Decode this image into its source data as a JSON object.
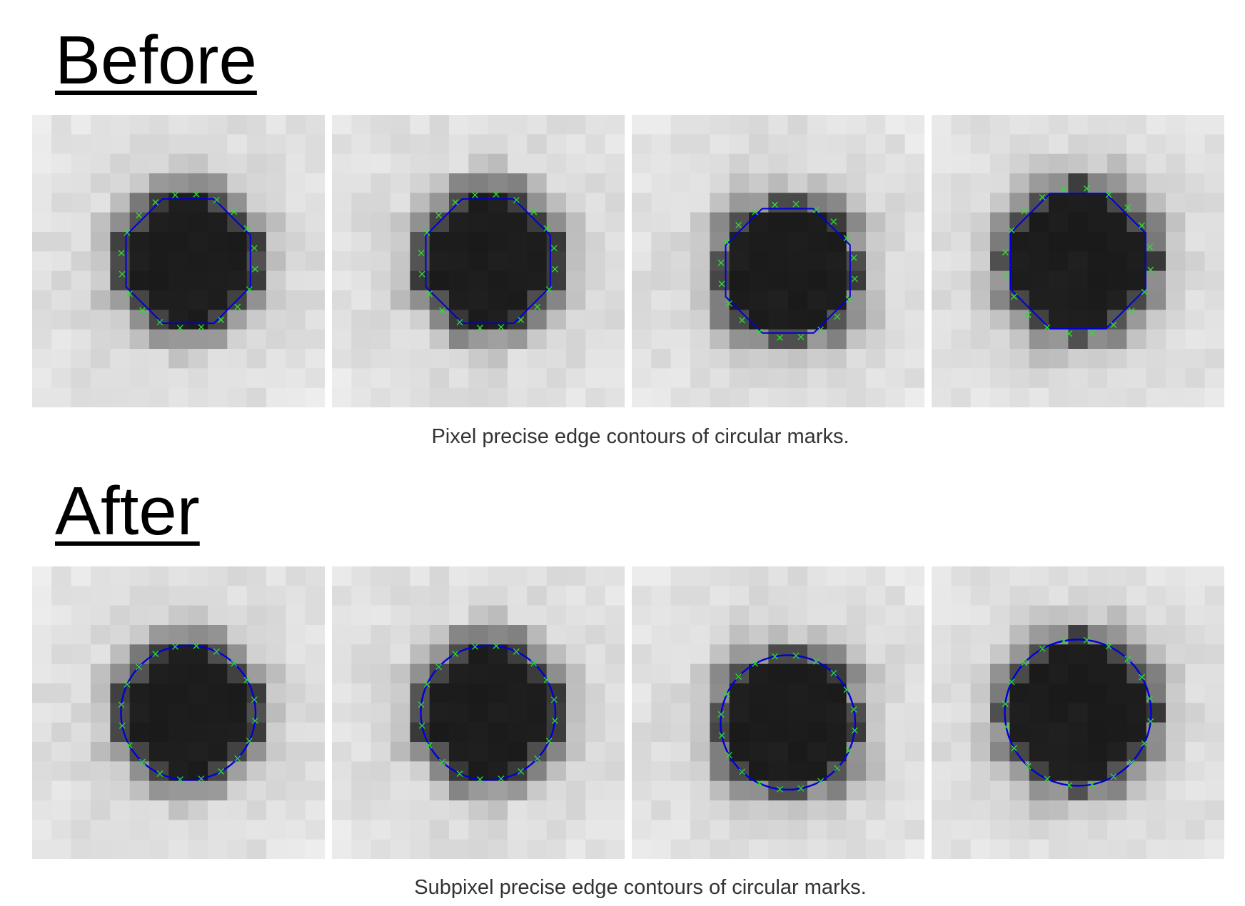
{
  "sections": [
    {
      "heading": "Before",
      "caption": "Pixel precise edge contours of circular marks.",
      "contour_style": "polygon",
      "panels": [
        {
          "blob_center": [
            8,
            7.5
          ],
          "blob_radius": 3.6
        },
        {
          "blob_center": [
            8,
            7.5
          ],
          "blob_radius": 3.6
        },
        {
          "blob_center": [
            8,
            8
          ],
          "blob_radius": 3.6
        },
        {
          "blob_center": [
            7.5,
            7.5
          ],
          "blob_radius": 3.9
        }
      ]
    },
    {
      "heading": "After",
      "caption": "Subpixel precise edge contours of circular marks.",
      "contour_style": "circle",
      "panels": [
        {
          "blob_center": [
            8,
            7.5
          ],
          "blob_radius": 3.6
        },
        {
          "blob_center": [
            8,
            7.5
          ],
          "blob_radius": 3.6
        },
        {
          "blob_center": [
            8,
            8
          ],
          "blob_radius": 3.6
        },
        {
          "blob_center": [
            7.5,
            7.5
          ],
          "blob_radius": 3.9
        }
      ]
    }
  ],
  "colors": {
    "contour": "#0000d8",
    "edge_markers": "#2fe02f",
    "background_pixel": "#eeeeee",
    "mark_pixel": "#1a1a1a"
  }
}
